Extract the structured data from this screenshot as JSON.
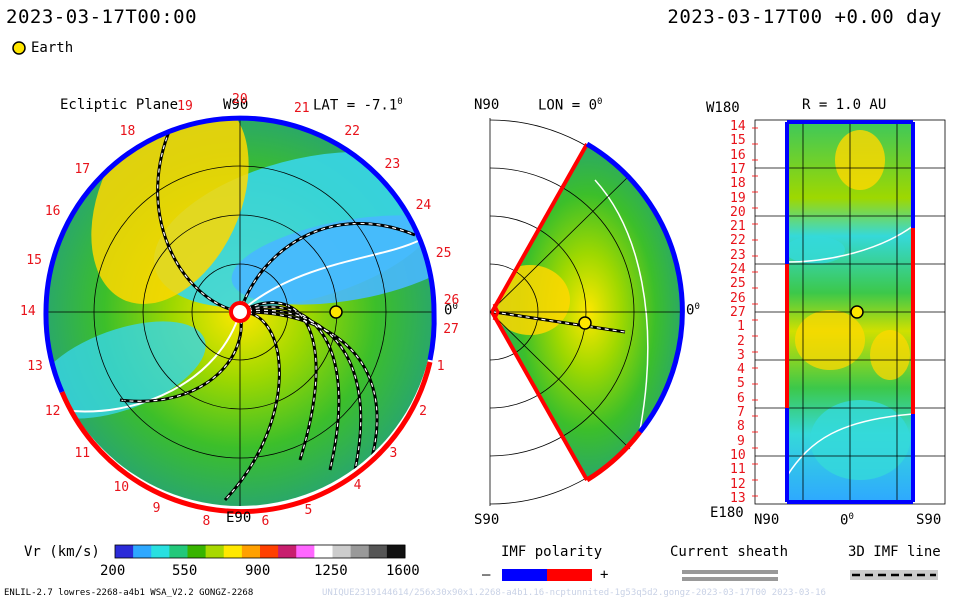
{
  "header": {
    "datetime_left": "2023-03-17T00:00",
    "datetime_right": "2023-03-17T00 +0.00 day",
    "earth_legend": "Earth"
  },
  "ecliptic_panel": {
    "title": "Ecliptic Plane",
    "lat_label": "LAT = -7.1",
    "degree_mark": "0",
    "top_label": "W90",
    "bottom_label": "E90",
    "right_label": "0",
    "carrington_labels": [
      "19",
      "20",
      "21",
      "22",
      "23",
      "24",
      "25",
      "26",
      "27",
      "1",
      "2",
      "3",
      "4",
      "5",
      "6",
      "8",
      "9",
      "10",
      "11",
      "12",
      "13",
      "14",
      "15",
      "16",
      "17",
      "18"
    ]
  },
  "meridional_panel": {
    "top_left": "N90",
    "lon_label": "LON = 0",
    "degree_mark": "0",
    "bottom_left": "S90",
    "right_label": "0"
  },
  "map_panel": {
    "title": "R = 1.0 AU",
    "top_left": "W180",
    "bottom_left": "E180",
    "x_labels": [
      "N90",
      "0",
      "S90"
    ],
    "degree_mark": "0",
    "y_labels": [
      "14",
      "15",
      "16",
      "17",
      "18",
      "19",
      "20",
      "21",
      "22",
      "23",
      "24",
      "25",
      "26",
      "27",
      "1",
      "2",
      "3",
      "4",
      "5",
      "6",
      "7",
      "8",
      "9",
      "10",
      "11",
      "12",
      "13"
    ]
  },
  "colorbar": {
    "label": "Vr (km/s)",
    "ticks": [
      "200",
      "550",
      "900",
      "1250",
      "1600"
    ],
    "colors": [
      "#2b2bd8",
      "#2ea8ff",
      "#29e0e0",
      "#22c87a",
      "#38b400",
      "#a8d800",
      "#ffe800",
      "#ffa000",
      "#ff4000",
      "#c81e6e",
      "#ff66ff",
      "#ffffff",
      "#cccccc",
      "#999999",
      "#555555",
      "#111111"
    ]
  },
  "imf_legend": {
    "title": "IMF polarity",
    "minus": "–",
    "plus": "+",
    "negative_color": "#0000ff",
    "positive_color": "#ff0000"
  },
  "current_sheath_legend": {
    "title": "Current sheath"
  },
  "imf_line_legend": {
    "title": "3D IMF line"
  },
  "footer": {
    "model_info": "ENLIL-2.7 lowres-2268-a4b1 WSA_V2.2 GONGZ-2268",
    "watermark": "UNIQUE2319144614/256x30x90x1.2268-a4b1.16-ncptunnited-1g53q5d2.gongz-2023-03-17T00 2023-03-16"
  },
  "colors": {
    "positive_polarity": "#ff0000",
    "negative_polarity": "#0000ff",
    "earth": "#ffe600"
  }
}
